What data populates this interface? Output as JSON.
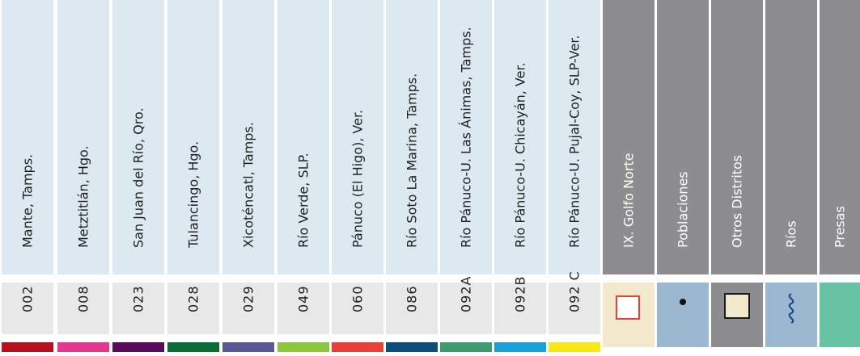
{
  "districts": [
    {
      "name": "Mante, Tamps.",
      "code": "002",
      "color": "#b3121e"
    },
    {
      "name": "Metztitlán, Hgo.",
      "code": "008",
      "color": "#e2388e"
    },
    {
      "name": "San Juan del Río, Qro.",
      "code": "023",
      "color": "#580b5b"
    },
    {
      "name": "Tulancingo, Hgo.",
      "code": "028",
      "color": "#0b6b37"
    },
    {
      "name": "Xicoténcatl, Tamps.",
      "code": "029",
      "color": "#5a5792"
    },
    {
      "name": "Río Verde, SLP.",
      "code": "049",
      "color": "#8dc53e"
    },
    {
      "name": "Pánuco (El Higo), Ver.",
      "code": "060",
      "color": "#e8413a"
    },
    {
      "name": "Río Soto La Marina, Tamps.",
      "code": "086",
      "color": "#0d4f7a"
    },
    {
      "name": "Río Pánuco-U. Las Ánimas, Tamps.",
      "code": "092A",
      "color": "#3f9c6f"
    },
    {
      "name": "Río Pánuco-U. Chicayán, Ver.",
      "code": "092B",
      "color": "#1ba0d8"
    },
    {
      "name": "Río Pánuco-U. Pujal-Coy, SLP-Ver.",
      "code": "092 C",
      "color": "#f7e81a"
    }
  ],
  "legend": [
    {
      "label": "IX. Golfo Norte",
      "icon": "red-outline-square-icon",
      "bg": "#f2e9cc"
    },
    {
      "label": "Poblaciones",
      "icon": "dot-icon",
      "bg": "#9ab9d1"
    },
    {
      "label": "Otros Distritos",
      "icon": "cream-square-icon",
      "bg": "#8d8d8f"
    },
    {
      "label": "Ríos",
      "icon": "river-wave-icon",
      "bg": "#9ab9d1"
    },
    {
      "label": "Presas",
      "icon": "dam-swatch-icon",
      "bg": "#68c3a4"
    }
  ],
  "colors": {
    "header_light": "#dde9f1",
    "header_dark": "#8d8d8f",
    "code_bg": "#e8e8e8"
  }
}
